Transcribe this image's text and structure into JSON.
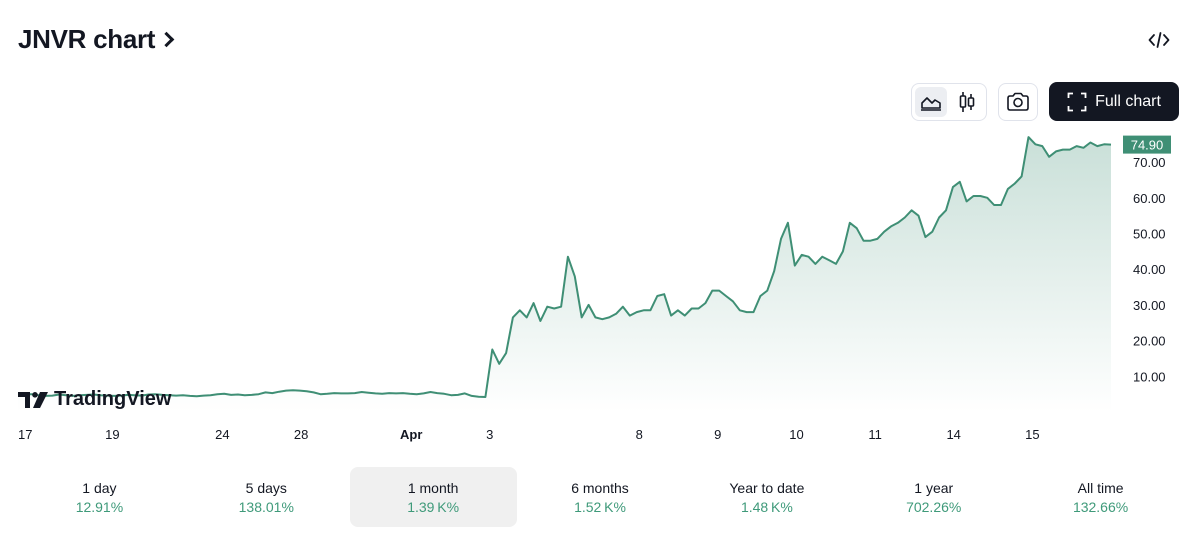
{
  "header": {
    "title": "JNVR chart",
    "embed_icon": "code-icon"
  },
  "toolbar": {
    "area_icon": "area-chart-icon",
    "candle_icon": "candlestick-icon",
    "camera_icon": "camera-icon",
    "full_chart_label": "Full chart",
    "full_chart_icon": "fullscreen-icon"
  },
  "branding": {
    "logo_text": "TradingView"
  },
  "ranges": [
    {
      "label": "1 day",
      "value": "12.91%"
    },
    {
      "label": "5 days",
      "value": "138.01%"
    },
    {
      "label": "1 month",
      "value": "1.39 K%",
      "active": true
    },
    {
      "label": "6 months",
      "value": "1.52 K%"
    },
    {
      "label": "Year to date",
      "value": "1.48 K%"
    },
    {
      "label": "1 year",
      "value": "702.26%"
    },
    {
      "label": "All time",
      "value": "132.66%"
    }
  ],
  "colors": {
    "line": "#3f8f75",
    "fill": "#3f8f75",
    "last_price_bg": "#3f8f75",
    "accent": "#131722"
  },
  "chart_data": {
    "type": "area",
    "title": "",
    "last_price": "74.90",
    "ylim": [
      0,
      79
    ],
    "y_ticks": [
      "10.00",
      "20.00",
      "30.00",
      "40.00",
      "50.00",
      "60.00",
      "70.00"
    ],
    "x_ticks": [
      {
        "label": "17",
        "x": 0,
        "bold": false
      },
      {
        "label": "19",
        "x": 12,
        "bold": false
      },
      {
        "label": "24",
        "x": 26,
        "bold": false
      },
      {
        "label": "28",
        "x": 36,
        "bold": false
      },
      {
        "label": "Apr",
        "x": 50,
        "bold": true
      },
      {
        "label": "3",
        "x": 60,
        "bold": false
      },
      {
        "label": "8",
        "x": 79,
        "bold": false
      },
      {
        "label": "9",
        "x": 89,
        "bold": false
      },
      {
        "label": "10",
        "x": 99,
        "bold": false
      },
      {
        "label": "11",
        "x": 109,
        "bold": false
      },
      {
        "label": "14",
        "x": 119,
        "bold": false
      },
      {
        "label": "15",
        "x": 129,
        "bold": false
      }
    ],
    "x_max": 139,
    "series": [
      {
        "values": [
          4.8,
          5.0,
          5.0,
          4.7,
          4.5,
          4.6,
          4.9,
          4.7,
          4.5,
          4.7,
          4.8,
          4.9,
          4.7,
          4.6,
          4.5,
          4.6,
          4.8,
          4.7,
          4.6,
          4.9,
          5.0,
          4.8,
          4.7,
          4.6,
          4.7,
          4.5,
          4.4,
          4.6,
          4.7,
          5.0,
          5.1,
          4.8,
          4.9,
          4.7,
          4.8,
          5.0,
          5.5,
          5.3,
          5.7,
          6.0,
          6.1,
          6.0,
          5.8,
          5.5,
          5.0,
          5.1,
          5.3,
          5.2,
          5.2,
          5.3,
          5.6,
          5.4,
          5.2,
          5.1,
          5.3,
          5.2,
          5.3,
          5.1,
          5.0,
          5.2,
          5.6,
          5.3,
          5.1,
          4.7,
          4.8,
          5.2,
          4.5,
          4.3,
          4.2,
          17.5,
          13.5,
          16.5,
          26.5,
          28.5,
          26.5,
          30.5,
          25.5,
          29.5,
          29.0,
          29.5,
          43.5,
          38.0,
          26.5,
          30.0,
          26.5,
          26.0,
          26.5,
          27.5,
          29.5,
          27.0,
          28.0,
          28.5,
          28.5,
          32.5,
          33.0,
          27.0,
          28.5,
          27.0,
          29.0,
          29.0,
          30.5,
          34.0,
          34.0,
          32.5,
          31.0,
          28.5,
          28.0,
          28.0,
          32.5,
          34.0,
          39.5,
          48.5,
          53.0,
          41.0,
          44.0,
          43.5,
          41.5,
          43.5,
          42.5,
          41.5,
          45.0,
          53.0,
          51.5,
          48.0,
          48.0,
          48.5,
          50.5,
          52.0,
          53.0,
          54.5,
          56.5,
          55.0,
          49.0,
          50.5,
          54.5,
          56.5,
          63.0,
          64.5,
          59.0,
          60.5,
          60.5,
          60.0,
          58.0,
          58.0,
          62.5,
          64.0,
          66.0,
          77.0,
          75.0,
          74.5,
          71.5,
          73.0,
          73.5,
          73.5,
          74.5,
          74.0,
          75.5,
          74.5,
          75.0,
          74.9
        ]
      }
    ]
  }
}
